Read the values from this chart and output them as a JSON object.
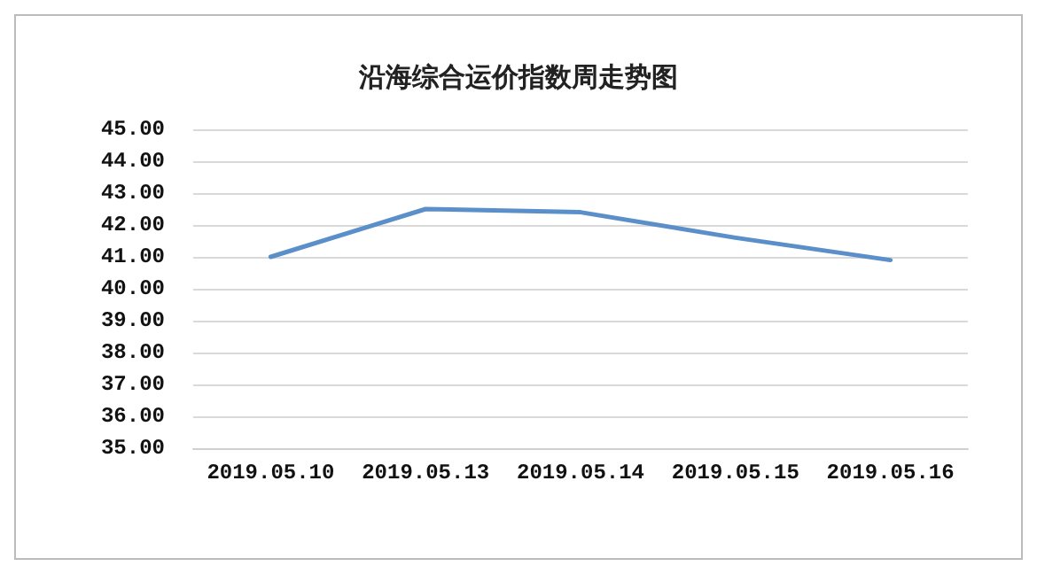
{
  "chart_data": {
    "type": "line",
    "title": "沿海综合运价指数周走势图",
    "categories": [
      "2019.05.10",
      "2019.05.13",
      "2019.05.14",
      "2019.05.15",
      "2019.05.16"
    ],
    "series": [
      {
        "color": "#5b8fc9",
        "values": [
          41.0,
          42.5,
          42.4,
          41.6,
          40.9
        ]
      }
    ],
    "ylim": [
      35,
      45
    ],
    "yticks": [
      {
        "value": 35,
        "label": "35.00"
      },
      {
        "value": 36,
        "label": "36.00"
      },
      {
        "value": 37,
        "label": "37.00"
      },
      {
        "value": 38,
        "label": "38.00"
      },
      {
        "value": 39,
        "label": "39.00"
      },
      {
        "value": 40,
        "label": "40.00"
      },
      {
        "value": 41,
        "label": "41.00"
      },
      {
        "value": 42,
        "label": "42.00"
      },
      {
        "value": 43,
        "label": "43.00"
      },
      {
        "value": 44,
        "label": "44.00"
      },
      {
        "value": 45,
        "label": "45.00"
      }
    ],
    "grid": "y",
    "marker": "none",
    "line_style": "solid"
  }
}
